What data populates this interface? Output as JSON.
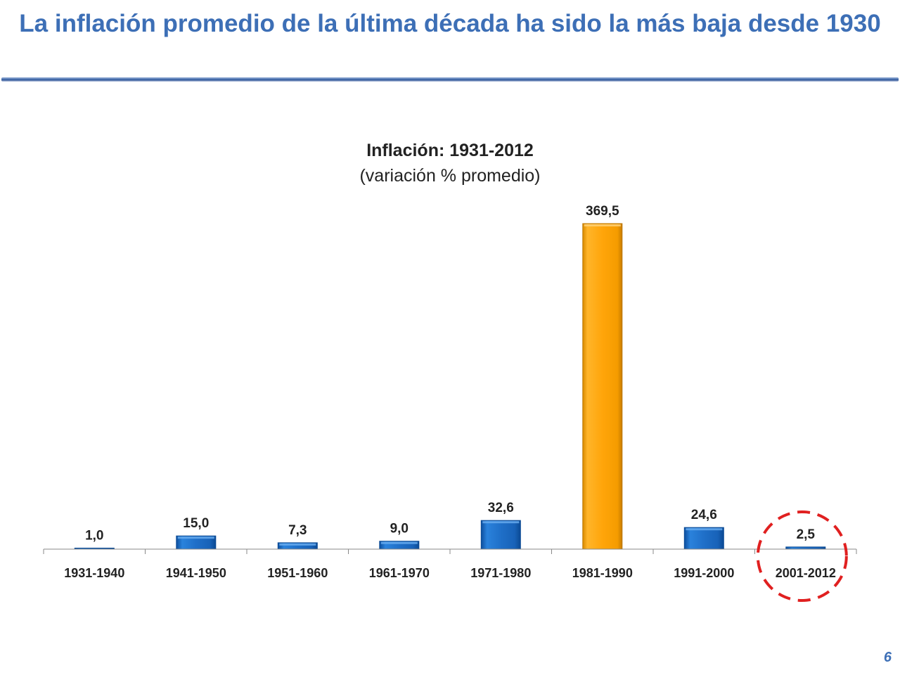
{
  "slide": {
    "title": "La inflación promedio de la última década ha sido la más baja desde 1930",
    "page_number": "6"
  },
  "colors": {
    "title": "#3d6fb6",
    "bar_default": "#1f6fc8",
    "bar_highlight": "#ffa50a",
    "highlight_circle": "#e02020"
  },
  "chart_data": {
    "type": "bar",
    "title": "Inflación: 1931-2012",
    "subtitle": "(variación % promedio)",
    "categories": [
      "1931-1940",
      "1941-1950",
      "1951-1960",
      "1961-1970",
      "1971-1980",
      "1981-1990",
      "1991-2000",
      "2001-2012"
    ],
    "values": [
      1.0,
      15.0,
      7.3,
      9.0,
      32.6,
      369.5,
      24.6,
      2.5
    ],
    "value_labels": [
      "1,0",
      "15,0",
      "7,3",
      "9,0",
      "32,6",
      "369,5",
      "24,6",
      "2,5"
    ],
    "highlight_bar": "1981-1990",
    "circled_category": "2001-2012",
    "ylim": [
      0,
      369.5
    ],
    "grid": false,
    "legend": "none",
    "xlabel": "",
    "ylabel": ""
  }
}
